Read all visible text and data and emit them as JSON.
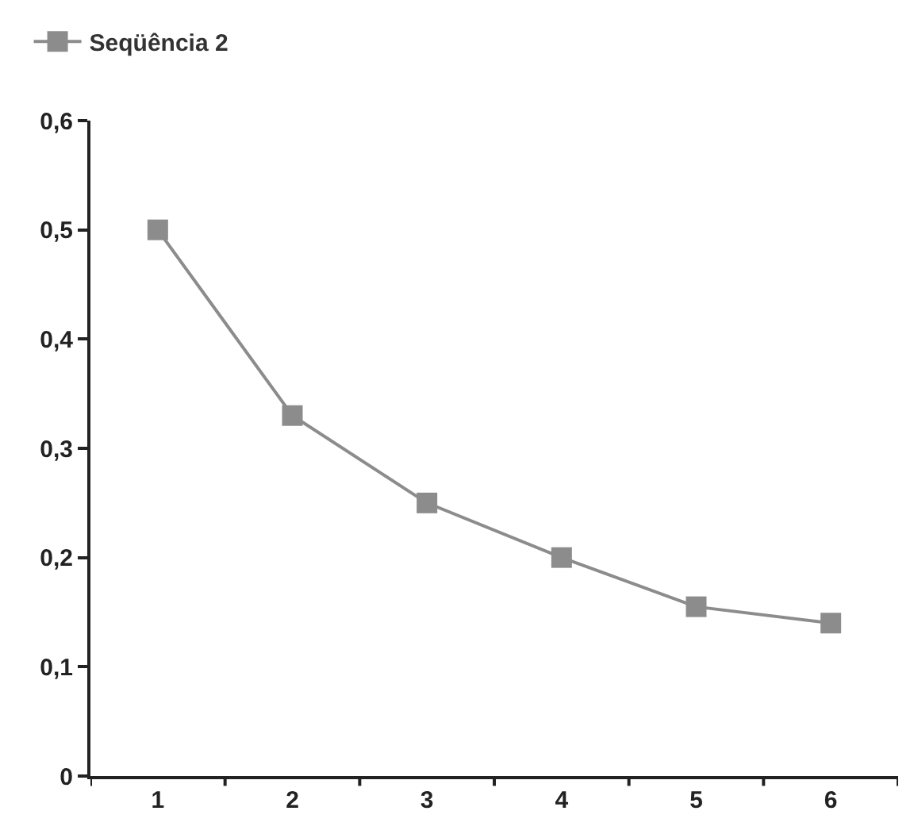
{
  "chart_data": {
    "type": "line",
    "categories": [
      "1",
      "2",
      "3",
      "4",
      "5",
      "6"
    ],
    "series": [
      {
        "name": "Seqüência 2",
        "color": "#8c8c8c",
        "values": [
          0.5,
          0.33,
          0.25,
          0.2,
          0.155,
          0.14
        ]
      }
    ],
    "ylim": [
      0,
      0.6
    ],
    "yticks": [
      {
        "value": 0,
        "label": "0"
      },
      {
        "value": 0.1,
        "label": "0,1"
      },
      {
        "value": 0.2,
        "label": "0,2"
      },
      {
        "value": 0.3,
        "label": "0,3"
      },
      {
        "value": 0.4,
        "label": "0,4"
      },
      {
        "value": 0.5,
        "label": "0,5"
      },
      {
        "value": 0.6,
        "label": "0,6"
      }
    ],
    "grid": false,
    "legend": "top left",
    "marker": "square",
    "line_style": "solid"
  }
}
